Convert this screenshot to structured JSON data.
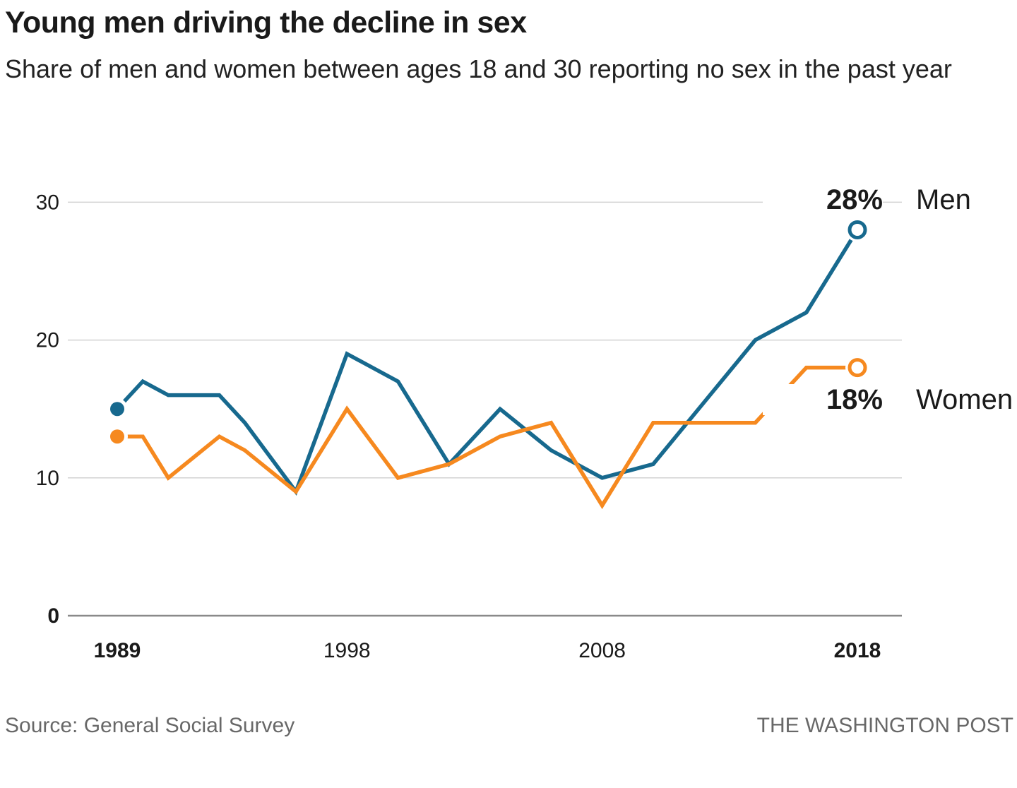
{
  "header": {
    "title": "Young men driving the decline in sex",
    "subtitle": "Share of men and women between ages 18 and 30 reporting no sex in the past year"
  },
  "annotations": {
    "men_value": "28%",
    "men_label": "Men",
    "women_value": "18%",
    "women_label": "Women"
  },
  "footer": {
    "source": "Source: General Social Survey",
    "credit": "THE WASHINGTON POST"
  },
  "colors": {
    "men": "#17698e",
    "women": "#f6891f",
    "grid": "#d2d2d2",
    "axis": "#8a8a8a",
    "text_dark": "#1a1a1a",
    "text_gray": "#686868"
  },
  "chart_data": {
    "type": "line",
    "title": "Young men driving the decline in sex",
    "subtitle": "Share of men and women between ages 18 and 30 reporting no sex in the past year",
    "x": [
      1989,
      1990,
      1991,
      1993,
      1994,
      1996,
      1998,
      2000,
      2002,
      2004,
      2006,
      2008,
      2010,
      2012,
      2014,
      2016,
      2018
    ],
    "series": [
      {
        "name": "Men",
        "color": "#17698e",
        "values": [
          15,
          17,
          16,
          16,
          14,
          9,
          19,
          17,
          11,
          15,
          12,
          10,
          11,
          15.5,
          20,
          22,
          28
        ],
        "end_label": "28%"
      },
      {
        "name": "Women",
        "color": "#f6891f",
        "values": [
          13,
          13,
          10,
          13,
          12,
          9,
          15,
          10,
          11,
          13,
          14,
          8,
          14,
          14,
          14,
          18,
          18
        ],
        "end_label": "18%"
      }
    ],
    "yticks": [
      0,
      10,
      20,
      30
    ],
    "xticks": [
      1989,
      1998,
      2008,
      2018
    ],
    "ylim": [
      0,
      30
    ],
    "xlim": [
      1989,
      2018
    ],
    "grid": "horizontal",
    "legend_position": "right-of-line-ends"
  }
}
